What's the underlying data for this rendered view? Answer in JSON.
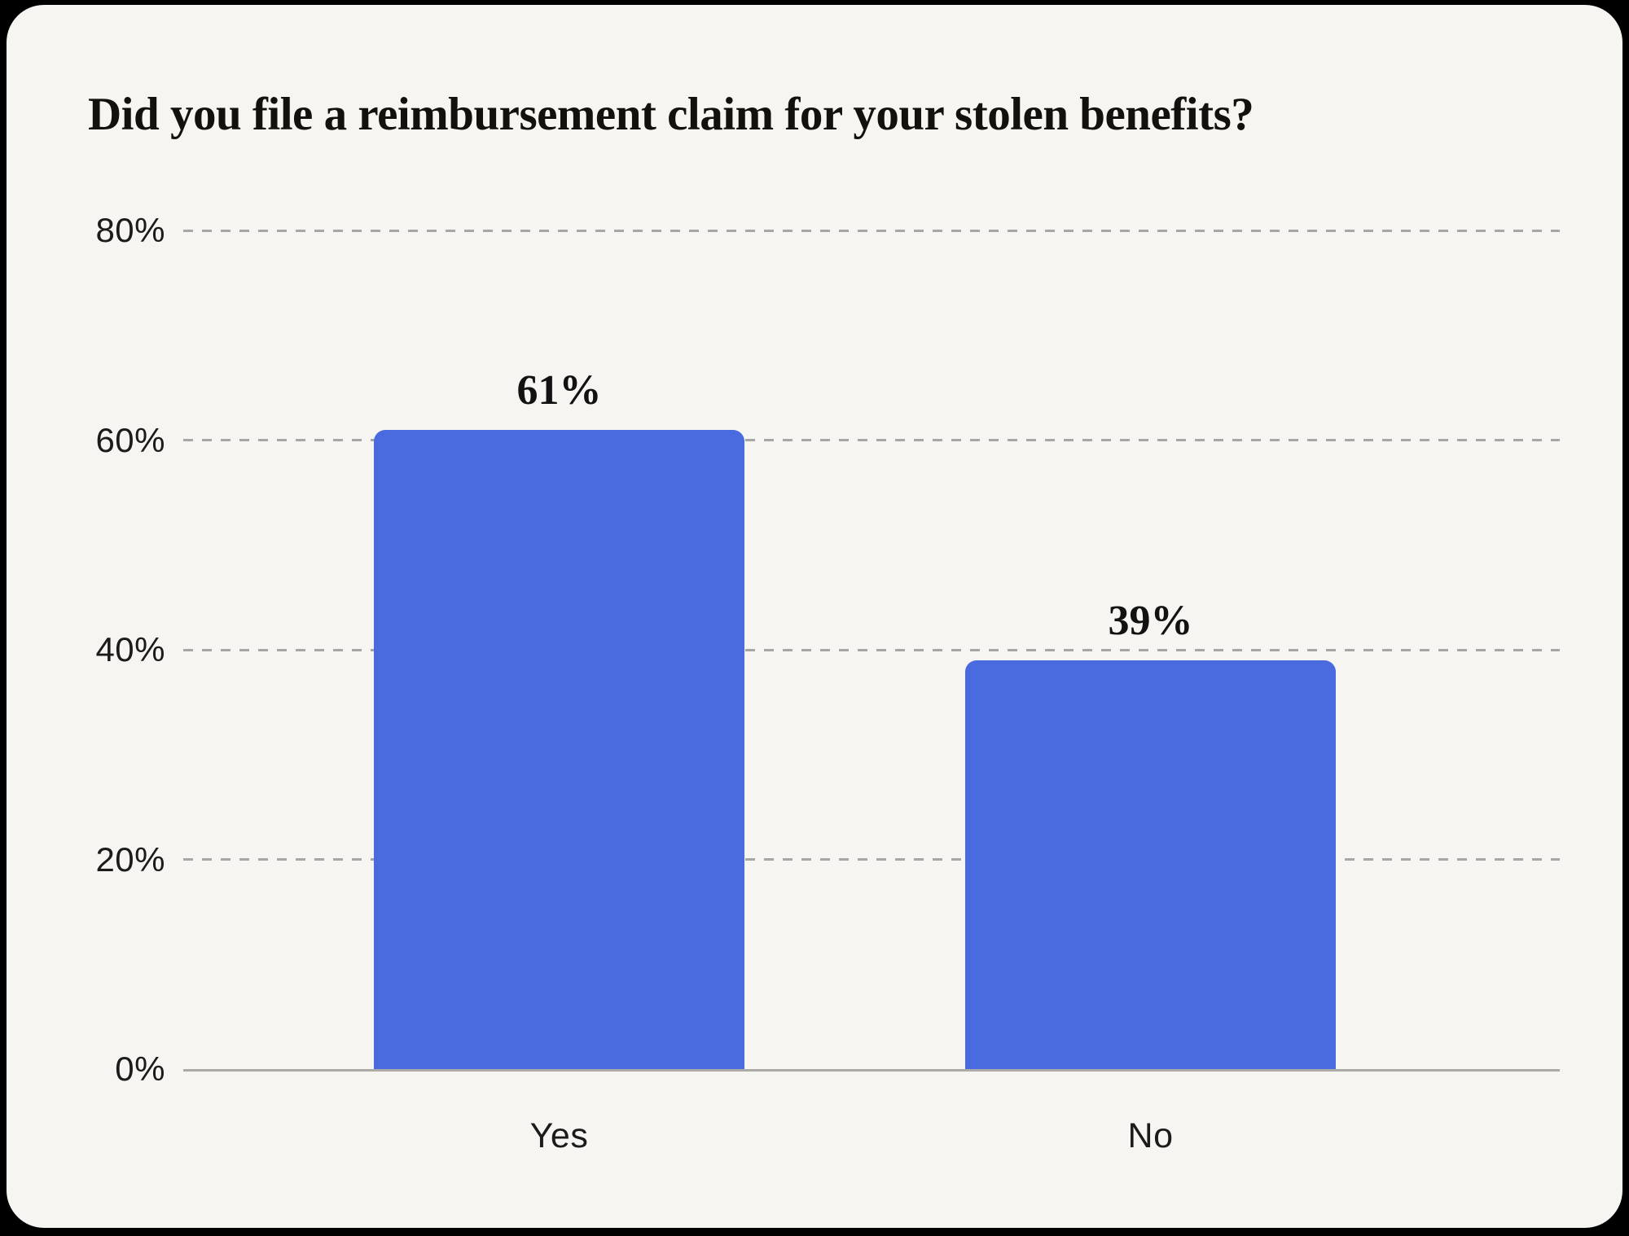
{
  "page": {
    "background": "#000000"
  },
  "card": {
    "background": "#F7F5F2"
  },
  "chart_data": {
    "type": "bar",
    "title": "Did you file a reimbursement claim for your stolen benefits?",
    "categories": [
      "Yes",
      "No"
    ],
    "values": [
      61,
      39
    ],
    "value_labels": [
      "61%",
      "39%"
    ],
    "xlabel": "",
    "ylabel": "",
    "ylim": [
      0,
      80
    ],
    "yticks": [
      80,
      60,
      40,
      20,
      0
    ],
    "ytick_labels": [
      "80%",
      "60%",
      "40%",
      "20%",
      "0%"
    ],
    "grid": "horizontal-dashed",
    "legend_position": "none",
    "bar_color": "#4A6BDF",
    "gridline_color": "#A6A6A6",
    "axis_line_color": "#ADABA8",
    "text_color": "#14110D"
  }
}
